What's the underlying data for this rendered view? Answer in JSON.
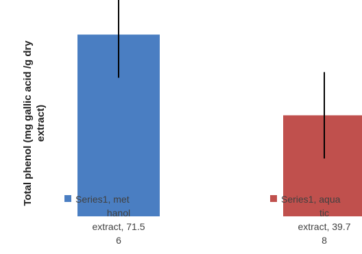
{
  "chart_data": {
    "type": "bar",
    "ylabel_lines": [
      "Total phenol (mg gallic acid /g dry",
      "extract)"
    ],
    "ylim": [
      0,
      90
    ],
    "grid": false,
    "series": [
      {
        "name": "Series1",
        "categories": [
          "methanol extract",
          "aquatic extract"
        ],
        "values": [
          71.56,
          39.78
        ],
        "error": [
          17,
          17
        ],
        "colors": [
          "#4a7ec2",
          "#c0504d"
        ],
        "data_labels": [
          [
            "Series1, met",
            "hanol",
            "extract, 71.5",
            "6"
          ],
          [
            "Series1, aqua",
            "tic",
            "extract, 39.7",
            "8"
          ]
        ]
      }
    ]
  }
}
